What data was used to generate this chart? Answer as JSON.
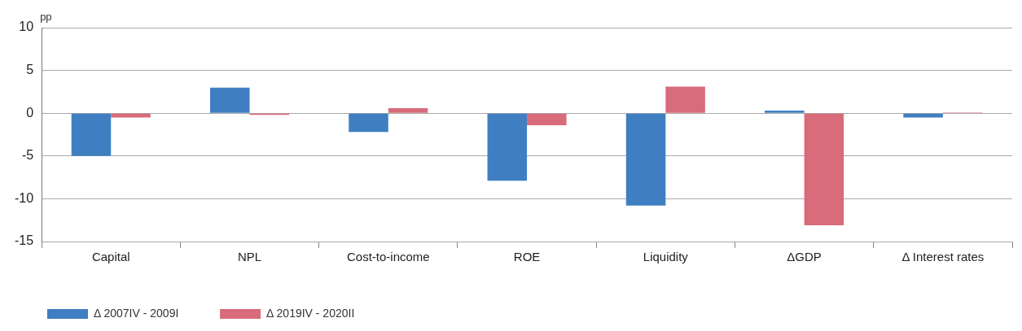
{
  "chart_data": {
    "type": "bar",
    "ylabel": "pp",
    "categories": [
      "Capital",
      "NPL",
      "Cost-to-income",
      "ROE",
      "Liquidity",
      "ΔGDP",
      "Δ Interest rates"
    ],
    "series": [
      {
        "name": "Δ 2007IV - 2009I",
        "color": "#3f7fc1",
        "values": [
          -5.0,
          3.0,
          -2.2,
          -7.9,
          -10.8,
          0.3,
          -0.5
        ]
      },
      {
        "name": "Δ 2019IV - 2020II",
        "color": "#d86c7a",
        "values": [
          -0.5,
          -0.2,
          0.6,
          -1.4,
          3.1,
          -13.1,
          0.1
        ]
      }
    ],
    "ylim": [
      -15,
      10
    ],
    "yticks": [
      -15,
      -10,
      -5,
      0,
      5,
      10
    ],
    "grid": "y",
    "legend": "bottom left"
  }
}
